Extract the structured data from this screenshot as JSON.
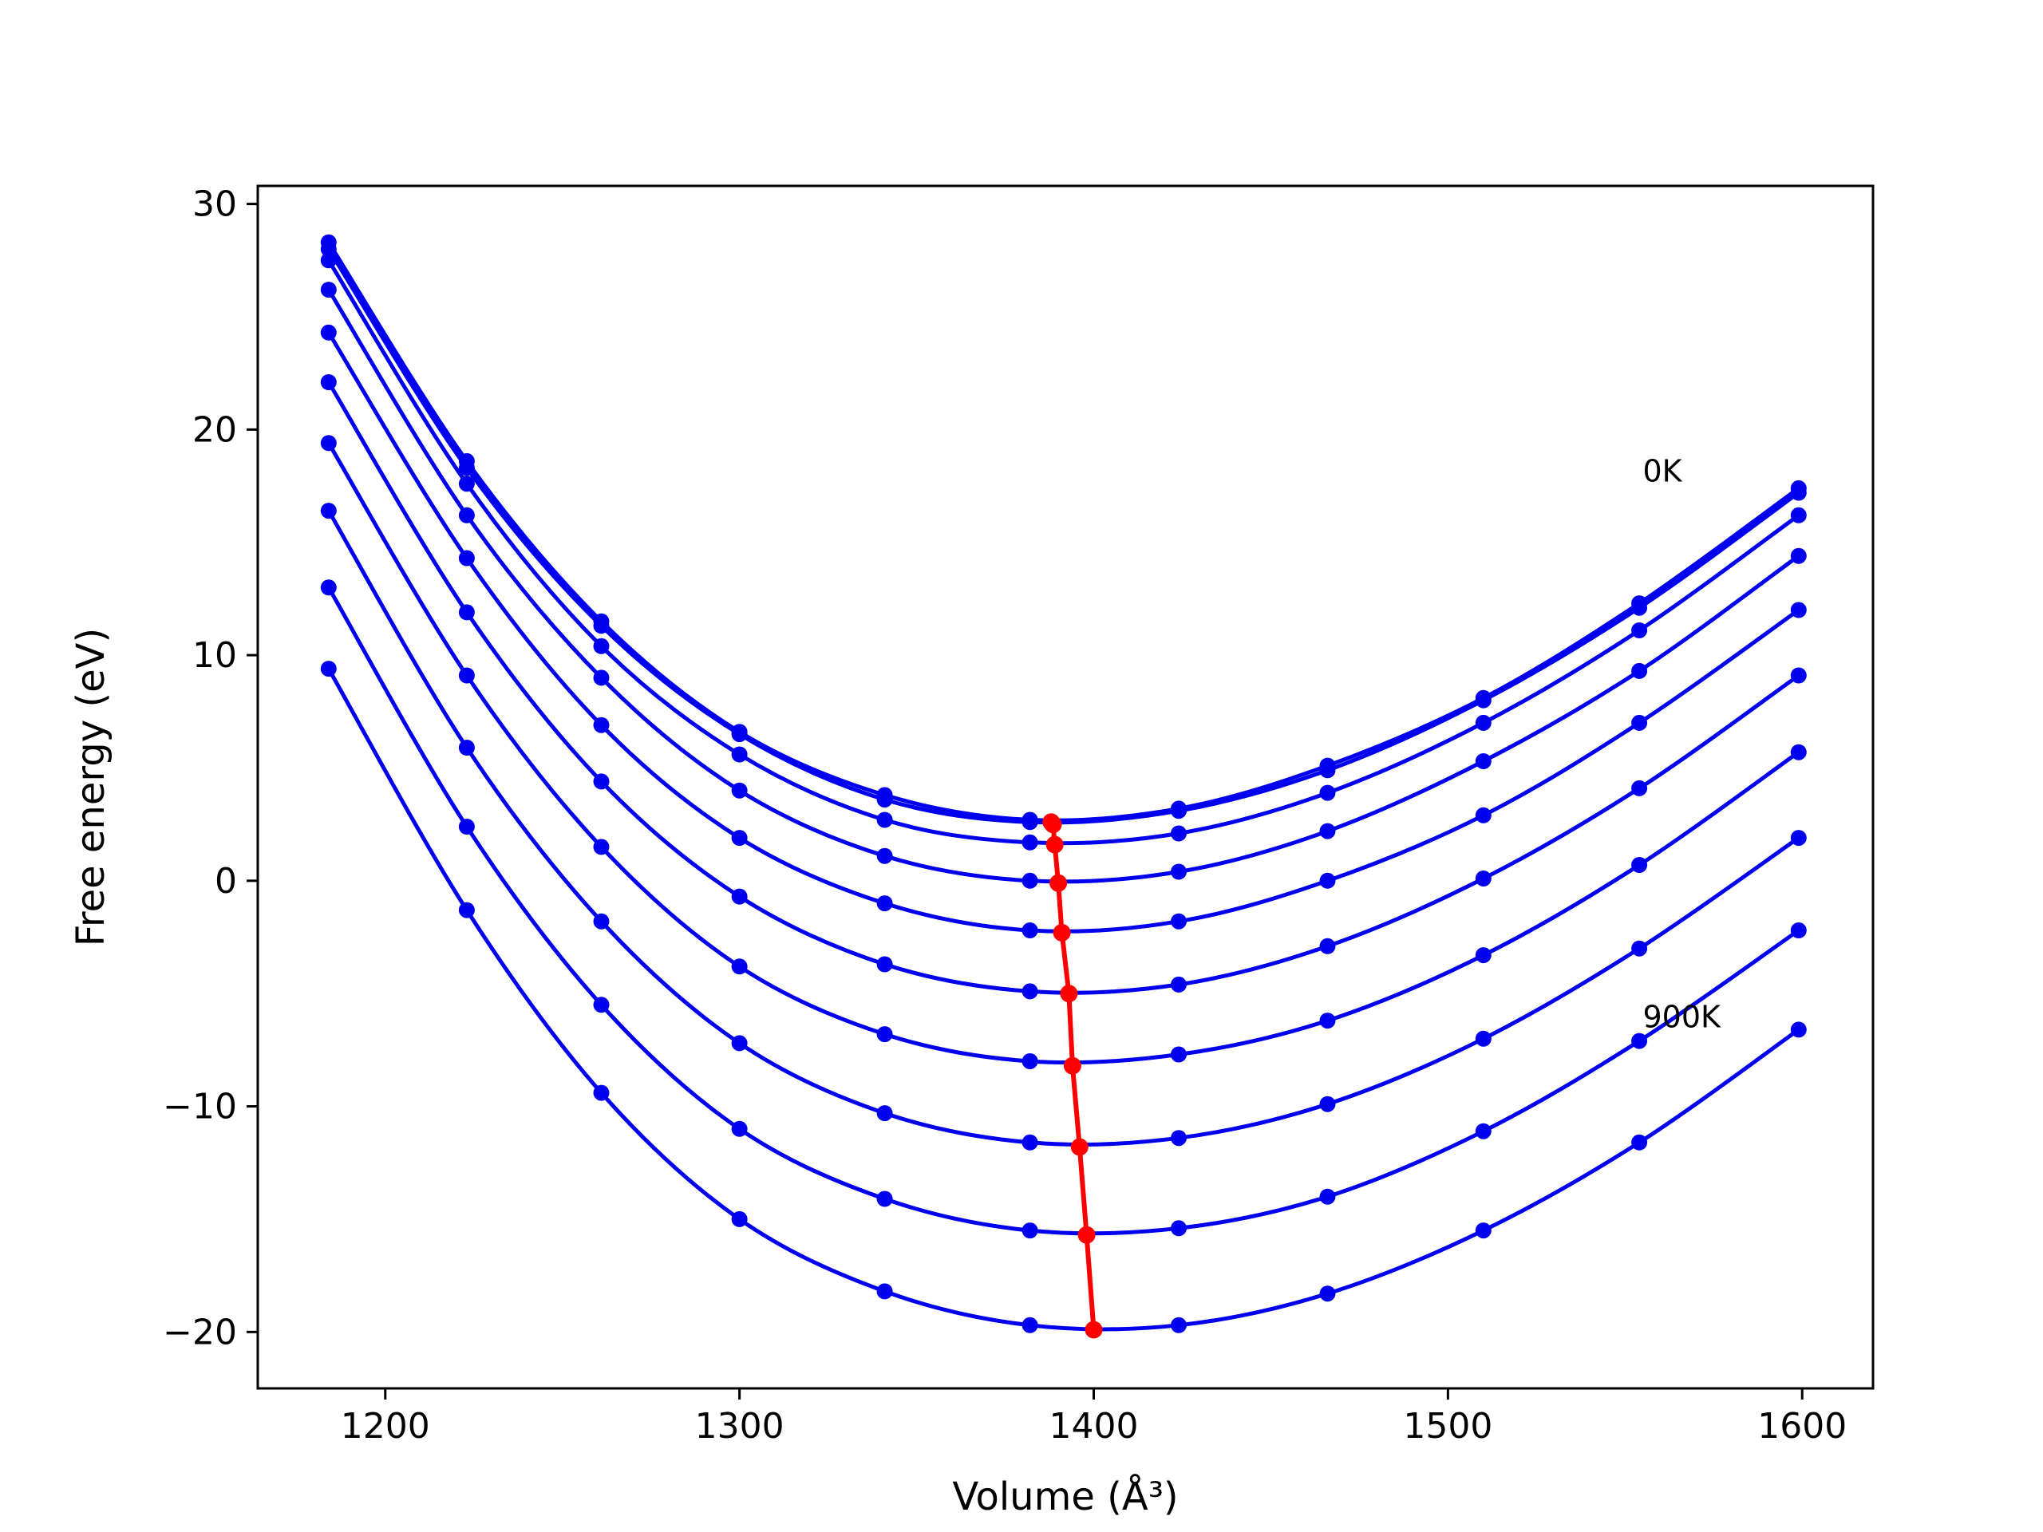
{
  "chart_data": {
    "type": "line",
    "title": "",
    "xlabel": "Volume (Å³)",
    "ylabel": "Free energy (eV)",
    "xlim": [
      1164,
      1620
    ],
    "ylim": [
      -22.5,
      30.8
    ],
    "xticks": [
      1200,
      1300,
      1400,
      1500,
      1600
    ],
    "yticks": [
      -20,
      -10,
      0,
      10,
      20,
      30
    ],
    "x_tick_labels": [
      "1200",
      "1300",
      "1400",
      "1500",
      "1600"
    ],
    "y_tick_labels": [
      "−20",
      "−10",
      "0",
      "10",
      "20",
      "30"
    ],
    "grid": false,
    "series_color": "#0000ee",
    "minimum_color": "#ff0000",
    "x": [
      1184,
      1223,
      1261,
      1300,
      1341,
      1382,
      1424,
      1466,
      1510,
      1554,
      1599
    ],
    "series": [
      {
        "values": [
          28.3,
          18.6,
          11.5,
          6.6,
          3.8,
          2.7,
          3.2,
          5.1,
          8.1,
          12.3,
          17.4
        ]
      },
      {
        "values": [
          28.0,
          18.3,
          11.3,
          6.5,
          3.6,
          2.6,
          3.1,
          4.9,
          8.0,
          12.1,
          17.2
        ]
      },
      {
        "values": [
          27.5,
          17.6,
          10.4,
          5.6,
          2.7,
          1.7,
          2.1,
          3.9,
          7.0,
          11.1,
          16.2
        ]
      },
      {
        "values": [
          26.2,
          16.2,
          9.0,
          4.0,
          1.1,
          0.0,
          0.4,
          2.2,
          5.3,
          9.3,
          14.4
        ]
      },
      {
        "values": [
          24.3,
          14.3,
          6.9,
          1.9,
          -1.0,
          -2.2,
          -1.8,
          0.0,
          2.9,
          7.0,
          12.0
        ]
      },
      {
        "values": [
          22.1,
          11.9,
          4.4,
          -0.7,
          -3.7,
          -4.9,
          -4.6,
          -2.9,
          0.1,
          4.1,
          9.1
        ]
      },
      {
        "values": [
          19.4,
          9.1,
          1.5,
          -3.8,
          -6.8,
          -8.0,
          -7.7,
          -6.2,
          -3.3,
          0.7,
          5.7
        ]
      },
      {
        "values": [
          16.4,
          5.9,
          -1.8,
          -7.2,
          -10.3,
          -11.6,
          -11.4,
          -9.9,
          -7.0,
          -3.0,
          1.9
        ]
      },
      {
        "values": [
          13.0,
          2.4,
          -5.5,
          -11.0,
          -14.1,
          -15.5,
          -15.4,
          -14.0,
          -11.1,
          -7.1,
          -2.2
        ]
      },
      {
        "values": [
          9.4,
          -1.3,
          -9.4,
          -15.0,
          -18.2,
          -19.7,
          -19.7,
          -18.3,
          -15.5,
          -11.6,
          -6.6
        ]
      }
    ],
    "minimum_curve": {
      "x": [
        1388,
        1388.5,
        1389,
        1390,
        1391,
        1393,
        1394,
        1396,
        1398,
        1400
      ],
      "y": [
        2.6,
        2.5,
        1.6,
        -0.1,
        -2.3,
        -5.0,
        -8.2,
        -11.8,
        -15.7,
        -19.9
      ]
    },
    "annotations": [
      {
        "text": "0K",
        "x": 1555,
        "y": 17.7
      },
      {
        "text": "900K",
        "x": 1555,
        "y": -6.5
      }
    ]
  }
}
